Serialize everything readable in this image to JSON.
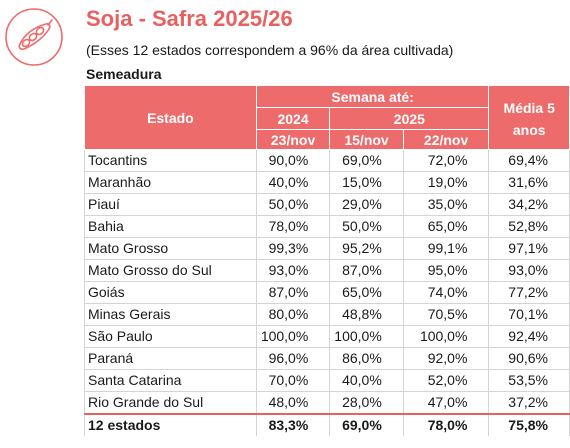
{
  "header": {
    "title": "Soja - Safra 2025/26",
    "subtitle": "(Esses 12 estados correspondem a 96% da área cultivada)",
    "section": "Semeadura"
  },
  "colors": {
    "accent": "#EE6B6B",
    "title": "#E8605F",
    "border": "#d4d4d4"
  },
  "logo": {
    "icon": "soybean-pod-icon"
  },
  "table": {
    "headers": {
      "estado": "Estado",
      "semana": "Semana até:",
      "year_a": "2024",
      "year_b": "2025",
      "media": "Média  5 anos",
      "date_a": "23/nov",
      "date_b": "15/nov",
      "date_c": "22/nov"
    },
    "rows": [
      {
        "estado": "Tocantins",
        "c1": "90,0%",
        "c2": "69,0%",
        "c3": "72,0%",
        "media": "69,4%"
      },
      {
        "estado": "Maranhão",
        "c1": "40,0%",
        "c2": "15,0%",
        "c3": "19,0%",
        "media": "31,6%"
      },
      {
        "estado": "Piauí",
        "c1": "50,0%",
        "c2": "29,0%",
        "c3": "35,0%",
        "media": "34,2%"
      },
      {
        "estado": "Bahia",
        "c1": "78,0%",
        "c2": "50,0%",
        "c3": "65,0%",
        "media": "52,8%"
      },
      {
        "estado": "Mato Grosso",
        "c1": "99,3%",
        "c2": "95,2%",
        "c3": "99,1%",
        "media": "97,1%"
      },
      {
        "estado": "Mato Grosso do Sul",
        "c1": "93,0%",
        "c2": "87,0%",
        "c3": "95,0%",
        "media": "93,0%"
      },
      {
        "estado": "Goiás",
        "c1": "87,0%",
        "c2": "65,0%",
        "c3": "74,0%",
        "media": "77,2%"
      },
      {
        "estado": "Minas Gerais",
        "c1": "80,0%",
        "c2": "48,8%",
        "c3": "70,5%",
        "media": "70,1%"
      },
      {
        "estado": "São Paulo",
        "c1": "100,0%",
        "c2": "100,0%",
        "c3": "100,0%",
        "media": "92,4%"
      },
      {
        "estado": "Paraná",
        "c1": "96,0%",
        "c2": "86,0%",
        "c3": "92,0%",
        "media": "90,6%"
      },
      {
        "estado": "Santa Catarina",
        "c1": "70,0%",
        "c2": "40,0%",
        "c3": "52,0%",
        "media": "53,5%"
      },
      {
        "estado": "Rio Grande do Sul",
        "c1": "48,0%",
        "c2": "28,0%",
        "c3": "47,0%",
        "media": "37,2%"
      }
    ],
    "total": {
      "estado": "12 estados",
      "c1": "83,3%",
      "c2": "69,0%",
      "c3": "78,0%",
      "media": "75,8%"
    }
  }
}
